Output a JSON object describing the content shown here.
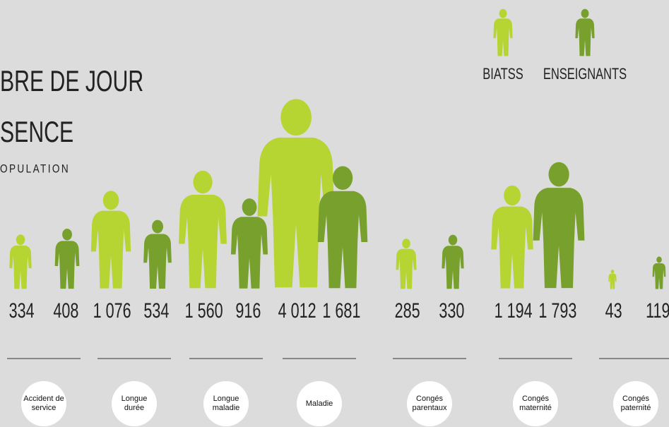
{
  "chart_data": {
    "type": "pictogram",
    "title_lines": [
      "BRE DE JOUR",
      "SENCE"
    ],
    "subtitle": "OPULATION",
    "categories": [
      "Accident de service",
      "Longue durée",
      "Longue maladie",
      "Maladie",
      "Congés parentaux",
      "Congés maternité",
      "Congés paternité"
    ],
    "series": [
      {
        "name": "BIATSS",
        "color": "#b6d432",
        "values": [
          334,
          1076,
          1560,
          4012,
          285,
          1194,
          43
        ],
        "value_labels": [
          "334",
          "1 076",
          "1 560",
          "4 012",
          "285",
          "1 194",
          "43"
        ]
      },
      {
        "name": "ENSEIGNANTS",
        "color": "#78a02c",
        "values": [
          408,
          534,
          916,
          1681,
          330,
          1793,
          119
        ],
        "value_labels": [
          "408",
          "534",
          "916",
          "1 681",
          "330",
          "1 793",
          "119"
        ]
      }
    ]
  }
}
